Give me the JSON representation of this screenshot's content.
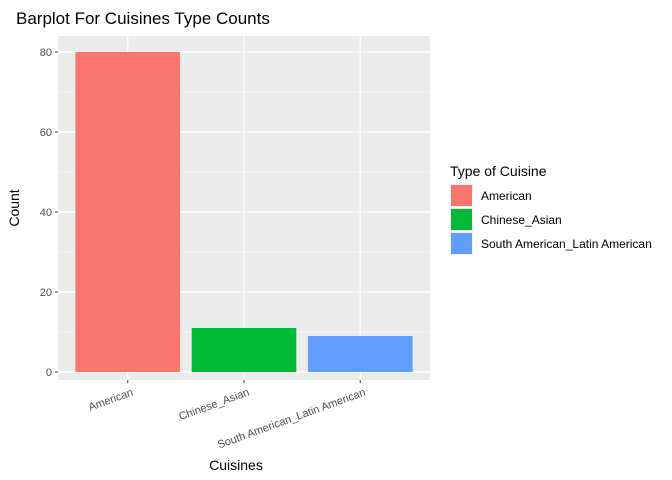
{
  "chart_data": {
    "type": "bar",
    "title": "Barplot For Cuisines Type Counts",
    "xlabel": "Cuisines",
    "ylabel": "Count",
    "categories": [
      "American",
      "Chinese_Asian",
      "South American_Latin American"
    ],
    "values": [
      80,
      11,
      9
    ],
    "colors": [
      "#F8766D",
      "#00BA38",
      "#619CFF"
    ],
    "ylim": [
      -2,
      84
    ],
    "yticks": [
      0,
      20,
      40,
      60,
      80
    ],
    "grid": true,
    "legend": {
      "title": "Type of Cuisine",
      "position": "right",
      "entries": [
        "American",
        "Chinese_Asian",
        "South American_Latin American"
      ]
    }
  }
}
